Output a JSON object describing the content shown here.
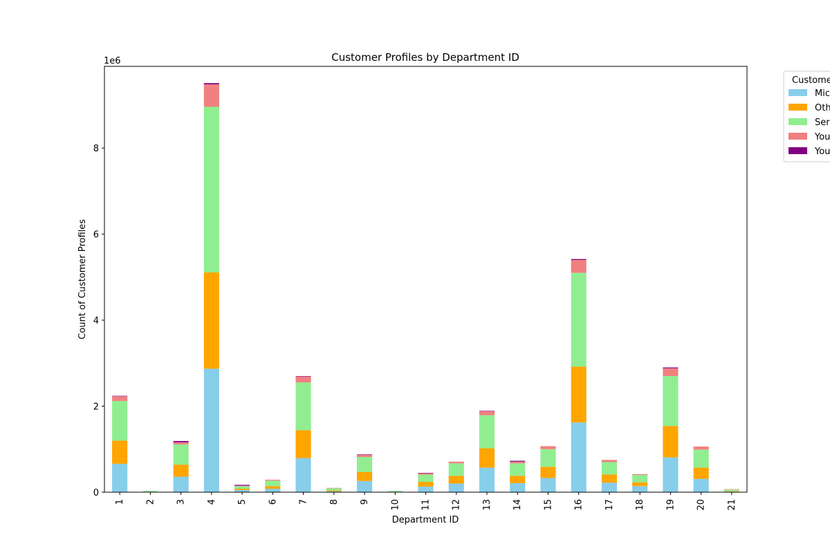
{
  "chart_data": {
    "type": "bar",
    "stacked": true,
    "title": "Customer Profiles by Department ID",
    "xlabel": "Department ID",
    "ylabel": "Count of Customer Profiles",
    "y_multiplier_label": "1e6",
    "ylim": [
      0,
      9.9
    ],
    "yticks": [
      0,
      2,
      4,
      6,
      8
    ],
    "legend_title": "Custome",
    "legend_position": "right, outside plot (cut off)",
    "grid": false,
    "categories": [
      "1",
      "2",
      "3",
      "4",
      "5",
      "6",
      "7",
      "8",
      "9",
      "10",
      "11",
      "12",
      "13",
      "14",
      "15",
      "16",
      "17",
      "18",
      "19",
      "20",
      "21"
    ],
    "series": [
      {
        "name": "Mic",
        "color": "#87CEEB",
        "values": [
          0.66,
          0.01,
          0.36,
          2.87,
          0.05,
          0.08,
          0.79,
          0.02,
          0.26,
          0.01,
          0.13,
          0.2,
          0.57,
          0.21,
          0.33,
          1.62,
          0.22,
          0.14,
          0.81,
          0.31,
          0.01
        ]
      },
      {
        "name": "Oth",
        "color": "#FFA500",
        "values": [
          0.54,
          0.0,
          0.28,
          2.24,
          0.03,
          0.06,
          0.65,
          0.02,
          0.21,
          0.0,
          0.11,
          0.18,
          0.45,
          0.17,
          0.26,
          1.3,
          0.19,
          0.09,
          0.73,
          0.26,
          0.01
        ]
      },
      {
        "name": "Ser",
        "color": "#90EE90",
        "values": [
          0.92,
          0.02,
          0.47,
          3.85,
          0.06,
          0.13,
          1.11,
          0.05,
          0.35,
          0.02,
          0.17,
          0.29,
          0.77,
          0.29,
          0.41,
          2.18,
          0.29,
          0.17,
          1.16,
          0.42,
          0.04
        ]
      },
      {
        "name": "You",
        "color": "#F08080",
        "values": [
          0.11,
          0.0,
          0.05,
          0.52,
          0.01,
          0.02,
          0.14,
          0.01,
          0.05,
          0.0,
          0.03,
          0.04,
          0.09,
          0.04,
          0.07,
          0.3,
          0.05,
          0.02,
          0.18,
          0.07,
          0.01
        ]
      },
      {
        "name": "You",
        "color": "#800080",
        "values": [
          0.01,
          0.0,
          0.03,
          0.03,
          0.02,
          0.0,
          0.01,
          0.0,
          0.01,
          0.0,
          0.01,
          0.0,
          0.01,
          0.02,
          0.0,
          0.02,
          0.0,
          0.0,
          0.02,
          0.0,
          0.0
        ]
      }
    ]
  }
}
